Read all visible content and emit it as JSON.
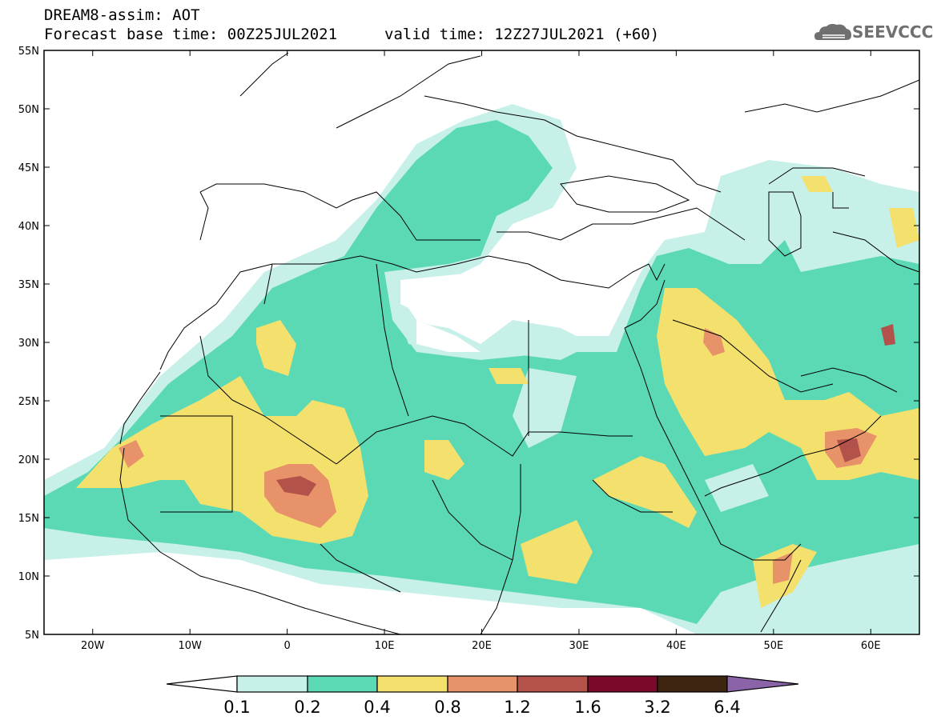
{
  "header": {
    "title": "DREAM8-assim: AOT",
    "base_time": "Forecast base time: 00Z25JUL2021",
    "valid_time": "valid time: 12Z27JUL2021 (+60)"
  },
  "logo": {
    "text": "SEEVCCC",
    "icon": "cloud-icon"
  },
  "axes": {
    "lat_ticks": [
      "55N",
      "50N",
      "45N",
      "40N",
      "35N",
      "30N",
      "25N",
      "20N",
      "15N",
      "10N",
      "5N"
    ],
    "lon_ticks": [
      "20W",
      "10W",
      "0",
      "10E",
      "20E",
      "30E",
      "40E",
      "50E",
      "60E"
    ]
  },
  "colorbar": {
    "labels": [
      "0.1",
      "0.2",
      "0.4",
      "0.8",
      "1.2",
      "1.6",
      "3.2",
      "6.4"
    ],
    "colors": [
      "#ffffff",
      "#c7f0e8",
      "#5bd9b4",
      "#f4e06d",
      "#e8926a",
      "#b3524a",
      "#7a0a2a",
      "#3d2512",
      "#8a63a8"
    ]
  },
  "map_data": {
    "variable": "AOT",
    "domain": {
      "lon_range": [
        -25,
        65
      ],
      "lat_range": [
        5,
        55
      ]
    },
    "levels": [
      0.1,
      0.2,
      0.4,
      0.8,
      1.2,
      1.6,
      3.2,
      6.4
    ],
    "level_colors": {
      "0.1-0.2": "#c7f0e8",
      "0.2-0.4": "#5bd9b4",
      "0.4-0.8": "#f4e06d",
      "0.8-1.2": "#e8926a",
      "1.2-1.6": "#b3524a",
      "1.6-3.2": "#7a0a2a",
      "3.2-6.4": "#3d2512"
    }
  }
}
